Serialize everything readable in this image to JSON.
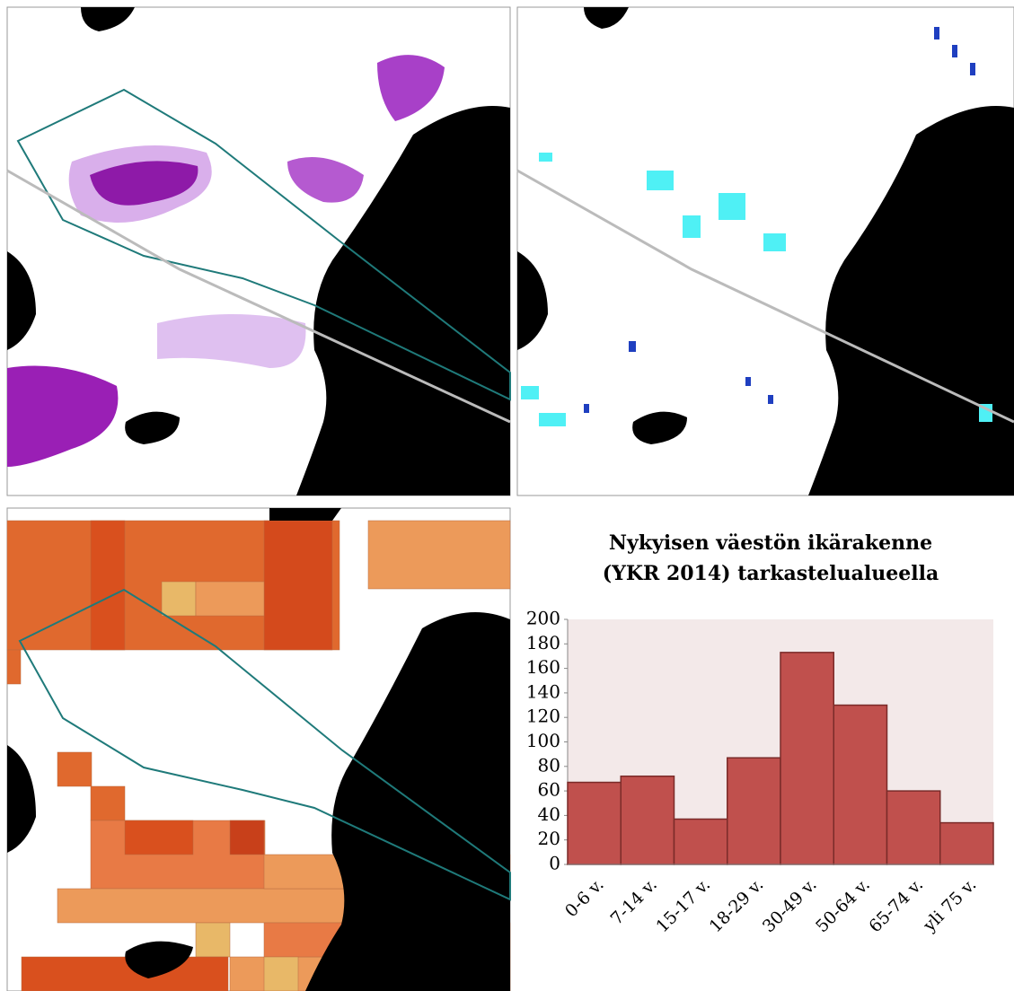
{
  "chart_data": {
    "type": "bar",
    "title": [
      "Nykyisen väestön ikärakenne",
      "(YKR 2014) tarkastelualueella"
    ],
    "categories": [
      "0-6 v.",
      "7-14 v.",
      "15-17 v.",
      "18-29 v.",
      "30-49 v.",
      "50-64 v.",
      "65-74 v.",
      "yli 75 v."
    ],
    "values": [
      67,
      72,
      37,
      87,
      173,
      130,
      60,
      34
    ],
    "color": "#c0504d",
    "ylim": [
      0,
      200
    ],
    "yticks": [
      0,
      20,
      40,
      60,
      80,
      100,
      120,
      140,
      160,
      180,
      200
    ],
    "grid": false
  }
}
